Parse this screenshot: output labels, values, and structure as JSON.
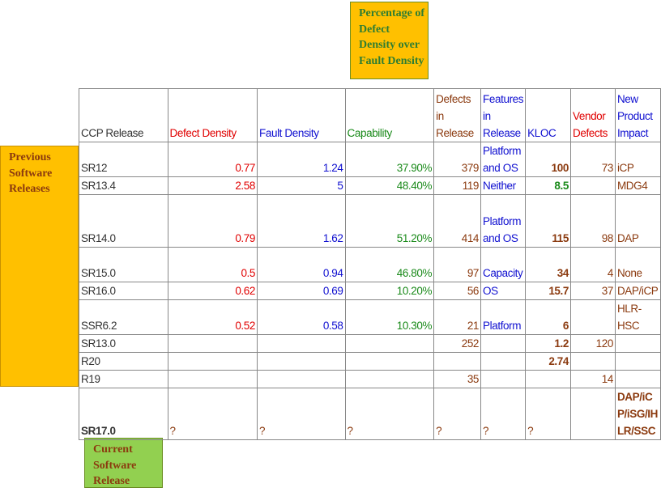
{
  "callouts": {
    "ratio": "Percentage of Defect Density over Fault Density",
    "previous": "Previous Software Releases",
    "current": "Current Software Release"
  },
  "table": {
    "columns": [
      "CCP Release",
      "Defect Density",
      "Fault Density",
      "Capability",
      "Defects in Release",
      "Features in Release",
      "KLOC",
      "Vendor Defects",
      "New Product Impact"
    ],
    "rows": [
      [
        "SR12",
        0.77,
        1.24,
        "37.90%",
        379,
        "Platform and OS",
        100,
        73,
        "iCP"
      ],
      [
        "SR13.4",
        2.58,
        5,
        "48.40%",
        119,
        "Neither",
        8.5,
        null,
        "MDG4"
      ],
      [
        "SR14.0",
        0.79,
        1.62,
        "51.20%",
        414,
        "Platform and OS",
        115,
        98,
        "DAP"
      ],
      [
        "SR15.0",
        0.5,
        0.94,
        "46.80%",
        97,
        "Capacity",
        34,
        4,
        "None"
      ],
      [
        "SR16.0",
        0.62,
        0.69,
        "10.20%",
        56,
        "OS",
        15.7,
        37,
        "DAP/iCP"
      ],
      [
        "SSR6.2",
        0.52,
        0.58,
        "10.30%",
        21,
        "Platform",
        6,
        null,
        "HLR-HSC"
      ],
      [
        "SR13.0",
        null,
        null,
        null,
        252,
        null,
        1.2,
        120,
        null
      ],
      [
        "R20",
        null,
        null,
        null,
        null,
        null,
        2.74,
        null,
        null
      ],
      [
        "R19",
        null,
        null,
        null,
        35,
        null,
        null,
        14,
        null
      ],
      [
        "SR17.0",
        "?",
        "?",
        "?",
        "?",
        "?",
        "?",
        null,
        "DAP/iCP/iSG/IHLR/SSC"
      ]
    ]
  }
}
